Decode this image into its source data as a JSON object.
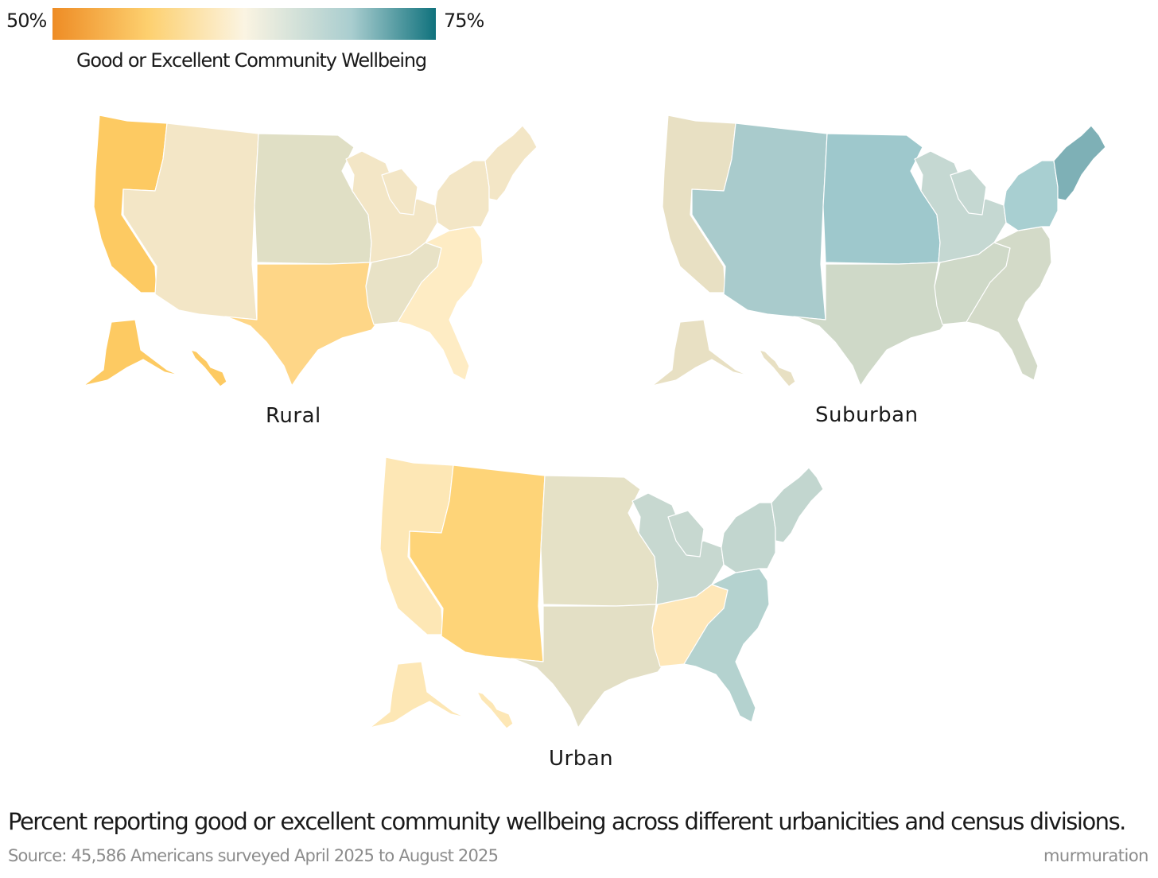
{
  "legend": {
    "min_label": "50%",
    "max_label": "75%",
    "title": "Good or Excellent Community Wellbeing",
    "colors": [
      "#ee8c25",
      "#fdd06f",
      "#fbf4e2",
      "#a9cdcf",
      "#10727d"
    ]
  },
  "chart_data": {
    "type": "choropleth",
    "metric": "Percent reporting good or excellent community wellbeing",
    "scale": {
      "min": 50,
      "max": 75
    },
    "maps": [
      {
        "name": "Rural",
        "divisions": [
          {
            "division": "Pacific",
            "color": "#fdca62"
          },
          {
            "division": "Mountain",
            "color": "#f3e6c6"
          },
          {
            "division": "West North Central",
            "color": "#e0dfc5"
          },
          {
            "division": "West South Central",
            "color": "#fed687"
          },
          {
            "division": "East North Central",
            "color": "#f3e6c6"
          },
          {
            "division": "East South Central",
            "color": "#e8e2c6"
          },
          {
            "division": "South Atlantic",
            "color": "#feecc4"
          },
          {
            "division": "Middle Atlantic",
            "color": "#f3e6c6"
          },
          {
            "division": "New England",
            "color": "#f3e6c6"
          }
        ]
      },
      {
        "name": "Suburban",
        "divisions": [
          {
            "division": "Pacific",
            "color": "#e8e0c3"
          },
          {
            "division": "Mountain",
            "color": "#a9cbcc"
          },
          {
            "division": "West North Central",
            "color": "#9ec8cc"
          },
          {
            "division": "West South Central",
            "color": "#cfd9c8"
          },
          {
            "division": "East North Central",
            "color": "#c5d8d2"
          },
          {
            "division": "East South Central",
            "color": "#cfd9c8"
          },
          {
            "division": "South Atlantic",
            "color": "#d3dac8"
          },
          {
            "division": "Middle Atlantic",
            "color": "#a8cfd1"
          },
          {
            "division": "New England",
            "color": "#7eb0b6"
          }
        ]
      },
      {
        "name": "Urban",
        "divisions": [
          {
            "division": "Pacific",
            "color": "#fde7b5"
          },
          {
            "division": "Mountain",
            "color": "#fed478"
          },
          {
            "division": "West North Central",
            "color": "#e5e1c6"
          },
          {
            "division": "West South Central",
            "color": "#e3dfc5"
          },
          {
            "division": "East North Central",
            "color": "#c7d8d0"
          },
          {
            "division": "East South Central",
            "color": "#fee7b8"
          },
          {
            "division": "South Atlantic",
            "color": "#b4d2cf"
          },
          {
            "division": "Middle Atlantic",
            "color": "#c2d6cf"
          },
          {
            "division": "New England",
            "color": "#c2d6cf"
          }
        ]
      }
    ]
  },
  "caption": "Percent reporting good or excellent community wellbeing across different urbanicities and census divisions.",
  "source": "Source:  45,586 Americans surveyed April 2025 to August 2025",
  "brand": "murmuration"
}
